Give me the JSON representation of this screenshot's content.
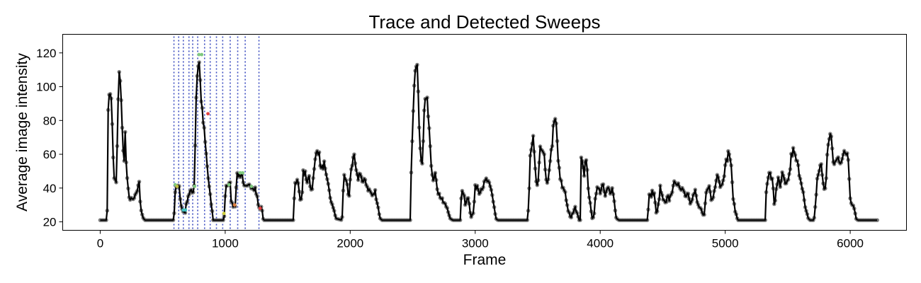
{
  "chart_data": {
    "type": "line",
    "title": "Trace and Detected Sweeps",
    "xlabel": "Frame",
    "ylabel": "Average image intensity",
    "xlim": [
      -300,
      6450
    ],
    "ylim": [
      15,
      131
    ],
    "xticks": [
      0,
      1000,
      2000,
      3000,
      4000,
      5000,
      6000
    ],
    "yticks": [
      20,
      40,
      60,
      80,
      100,
      120
    ],
    "grid": false,
    "legend": "none",
    "colors": {
      "trace": "#000000",
      "points": "#808080",
      "sweep_lines": "#3b4cc0"
    },
    "trace_keypoints": [
      [
        0,
        21
      ],
      [
        55,
        21
      ],
      [
        65,
        90
      ],
      [
        75,
        100
      ],
      [
        85,
        96
      ],
      [
        95,
        80
      ],
      [
        110,
        45
      ],
      [
        130,
        43
      ],
      [
        145,
        95
      ],
      [
        155,
        111
      ],
      [
        165,
        100
      ],
      [
        180,
        65
      ],
      [
        190,
        55
      ],
      [
        200,
        72
      ],
      [
        212,
        47
      ],
      [
        225,
        38
      ],
      [
        240,
        33
      ],
      [
        265,
        33
      ],
      [
        290,
        36
      ],
      [
        310,
        45
      ],
      [
        322,
        30
      ],
      [
        332,
        26
      ],
      [
        345,
        22
      ],
      [
        360,
        21
      ],
      [
        590,
        21
      ],
      [
        598,
        38
      ],
      [
        612,
        40
      ],
      [
        630,
        41
      ],
      [
        648,
        30
      ],
      [
        660,
        26
      ],
      [
        680,
        26
      ],
      [
        700,
        35
      ],
      [
        720,
        38
      ],
      [
        740,
        37
      ],
      [
        755,
        43
      ],
      [
        765,
        90
      ],
      [
        778,
        110
      ],
      [
        790,
        117
      ],
      [
        800,
        103
      ],
      [
        815,
        85
      ],
      [
        830,
        75
      ],
      [
        850,
        58
      ],
      [
        865,
        45
      ],
      [
        880,
        35
      ],
      [
        893,
        28
      ],
      [
        903,
        21
      ],
      [
        990,
        21
      ],
      [
        1000,
        35
      ],
      [
        1008,
        42
      ],
      [
        1040,
        42
      ],
      [
        1050,
        31
      ],
      [
        1060,
        30
      ],
      [
        1080,
        30
      ],
      [
        1090,
        45
      ],
      [
        1100,
        48
      ],
      [
        1140,
        48
      ],
      [
        1150,
        40
      ],
      [
        1180,
        40
      ],
      [
        1200,
        42
      ],
      [
        1240,
        40
      ],
      [
        1255,
        35
      ],
      [
        1268,
        28
      ],
      [
        1295,
        28
      ],
      [
        1305,
        21
      ],
      [
        1545,
        21
      ],
      [
        1555,
        40
      ],
      [
        1570,
        45
      ],
      [
        1585,
        45
      ],
      [
        1595,
        33
      ],
      [
        1610,
        32
      ],
      [
        1625,
        50
      ],
      [
        1640,
        48
      ],
      [
        1655,
        42
      ],
      [
        1670,
        50
      ],
      [
        1685,
        38
      ],
      [
        1700,
        42
      ],
      [
        1720,
        56
      ],
      [
        1735,
        65
      ],
      [
        1750,
        60
      ],
      [
        1770,
        50
      ],
      [
        1790,
        55
      ],
      [
        1810,
        45
      ],
      [
        1830,
        40
      ],
      [
        1850,
        30
      ],
      [
        1870,
        28
      ],
      [
        1885,
        22
      ],
      [
        1935,
        21
      ],
      [
        1950,
        48
      ],
      [
        1965,
        45
      ],
      [
        1980,
        40
      ],
      [
        1990,
        32
      ],
      [
        2005,
        52
      ],
      [
        2020,
        55
      ],
      [
        2035,
        58
      ],
      [
        2045,
        50
      ],
      [
        2060,
        45
      ],
      [
        2080,
        50
      ],
      [
        2100,
        42
      ],
      [
        2120,
        45
      ],
      [
        2140,
        40
      ],
      [
        2160,
        38
      ],
      [
        2180,
        35
      ],
      [
        2200,
        38
      ],
      [
        2220,
        30
      ],
      [
        2240,
        22
      ],
      [
        2255,
        21
      ],
      [
        2480,
        21
      ],
      [
        2490,
        55
      ],
      [
        2505,
        90
      ],
      [
        2520,
        110
      ],
      [
        2532,
        118
      ],
      [
        2542,
        100
      ],
      [
        2555,
        65
      ],
      [
        2575,
        50
      ],
      [
        2588,
        80
      ],
      [
        2600,
        92
      ],
      [
        2620,
        90
      ],
      [
        2635,
        75
      ],
      [
        2650,
        52
      ],
      [
        2668,
        45
      ],
      [
        2685,
        48
      ],
      [
        2700,
        38
      ],
      [
        2720,
        35
      ],
      [
        2740,
        32
      ],
      [
        2760,
        30
      ],
      [
        2780,
        28
      ],
      [
        2800,
        22
      ],
      [
        2820,
        21
      ],
      [
        2880,
        21
      ],
      [
        2890,
        36
      ],
      [
        2905,
        38
      ],
      [
        2920,
        30
      ],
      [
        2935,
        35
      ],
      [
        2950,
        33
      ],
      [
        2965,
        23
      ],
      [
        2985,
        25
      ],
      [
        3000,
        40
      ],
      [
        3015,
        42
      ],
      [
        3030,
        38
      ],
      [
        3050,
        40
      ],
      [
        3070,
        42
      ],
      [
        3090,
        45
      ],
      [
        3110,
        42
      ],
      [
        3130,
        38
      ],
      [
        3150,
        30
      ],
      [
        3165,
        22
      ],
      [
        3180,
        21
      ],
      [
        3420,
        21
      ],
      [
        3430,
        35
      ],
      [
        3440,
        58
      ],
      [
        3455,
        65
      ],
      [
        3465,
        70
      ],
      [
        3475,
        55
      ],
      [
        3490,
        40
      ],
      [
        3505,
        45
      ],
      [
        3520,
        62
      ],
      [
        3535,
        65
      ],
      [
        3550,
        60
      ],
      [
        3565,
        45
      ],
      [
        3580,
        40
      ],
      [
        3595,
        55
      ],
      [
        3610,
        62
      ],
      [
        3625,
        75
      ],
      [
        3640,
        80
      ],
      [
        3650,
        76
      ],
      [
        3665,
        55
      ],
      [
        3680,
        45
      ],
      [
        3700,
        40
      ],
      [
        3720,
        38
      ],
      [
        3735,
        30
      ],
      [
        3750,
        25
      ],
      [
        3765,
        22
      ],
      [
        3780,
        25
      ],
      [
        3800,
        28
      ],
      [
        3815,
        26
      ],
      [
        3830,
        21
      ],
      [
        3840,
        21
      ],
      [
        3845,
        55
      ],
      [
        3860,
        60
      ],
      [
        3870,
        45
      ],
      [
        3880,
        58
      ],
      [
        3890,
        55
      ],
      [
        3905,
        40
      ],
      [
        3920,
        30
      ],
      [
        3935,
        22
      ],
      [
        3950,
        24
      ],
      [
        3965,
        38
      ],
      [
        3980,
        40
      ],
      [
        4000,
        38
      ],
      [
        4020,
        42
      ],
      [
        4040,
        35
      ],
      [
        4060,
        40
      ],
      [
        4080,
        38
      ],
      [
        4100,
        40
      ],
      [
        4115,
        30
      ],
      [
        4130,
        22
      ],
      [
        4150,
        21
      ],
      [
        4380,
        21
      ],
      [
        4390,
        36
      ],
      [
        4405,
        35
      ],
      [
        4420,
        38
      ],
      [
        4435,
        36
      ],
      [
        4450,
        23
      ],
      [
        4465,
        30
      ],
      [
        4480,
        40
      ],
      [
        4495,
        35
      ],
      [
        4510,
        32
      ],
      [
        4525,
        30
      ],
      [
        4540,
        35
      ],
      [
        4555,
        33
      ],
      [
        4570,
        38
      ],
      [
        4585,
        40
      ],
      [
        4600,
        45
      ],
      [
        4620,
        42
      ],
      [
        4640,
        38
      ],
      [
        4660,
        42
      ],
      [
        4680,
        35
      ],
      [
        4700,
        38
      ],
      [
        4720,
        32
      ],
      [
        4740,
        35
      ],
      [
        4760,
        38
      ],
      [
        4780,
        30
      ],
      [
        4800,
        28
      ],
      [
        4815,
        25
      ],
      [
        4830,
        22
      ],
      [
        4845,
        35
      ],
      [
        4860,
        42
      ],
      [
        4875,
        40
      ],
      [
        4890,
        32
      ],
      [
        4905,
        35
      ],
      [
        4920,
        42
      ],
      [
        4935,
        50
      ],
      [
        4950,
        45
      ],
      [
        4965,
        40
      ],
      [
        4980,
        45
      ],
      [
        5000,
        52
      ],
      [
        5015,
        58
      ],
      [
        5030,
        62
      ],
      [
        5045,
        55
      ],
      [
        5058,
        40
      ],
      [
        5070,
        30
      ],
      [
        5085,
        25
      ],
      [
        5100,
        21
      ],
      [
        5320,
        21
      ],
      [
        5330,
        42
      ],
      [
        5345,
        48
      ],
      [
        5360,
        48
      ],
      [
        5375,
        45
      ],
      [
        5385,
        38
      ],
      [
        5395,
        28
      ],
      [
        5410,
        42
      ],
      [
        5425,
        45
      ],
      [
        5440,
        40
      ],
      [
        5455,
        48
      ],
      [
        5470,
        45
      ],
      [
        5485,
        40
      ],
      [
        5500,
        45
      ],
      [
        5515,
        48
      ],
      [
        5530,
        60
      ],
      [
        5545,
        62
      ],
      [
        5560,
        58
      ],
      [
        5575,
        55
      ],
      [
        5590,
        50
      ],
      [
        5605,
        45
      ],
      [
        5620,
        40
      ],
      [
        5635,
        30
      ],
      [
        5650,
        25
      ],
      [
        5665,
        22
      ],
      [
        5680,
        21
      ],
      [
        5710,
        21
      ],
      [
        5720,
        28
      ],
      [
        5735,
        45
      ],
      [
        5750,
        50
      ],
      [
        5765,
        55
      ],
      [
        5780,
        45
      ],
      [
        5795,
        38
      ],
      [
        5808,
        45
      ],
      [
        5820,
        65
      ],
      [
        5835,
        72
      ],
      [
        5850,
        70
      ],
      [
        5860,
        55
      ],
      [
        5875,
        55
      ],
      [
        5890,
        56
      ],
      [
        5905,
        58
      ],
      [
        5920,
        56
      ],
      [
        5935,
        58
      ],
      [
        5950,
        60
      ],
      [
        5965,
        60
      ],
      [
        5980,
        62
      ],
      [
        5990,
        50
      ],
      [
        6000,
        35
      ],
      [
        6015,
        30
      ],
      [
        6030,
        30
      ],
      [
        6045,
        22
      ],
      [
        6060,
        21
      ],
      [
        6220,
        21
      ]
    ],
    "sweep_lines_x": [
      590,
      628,
      665,
      710,
      740,
      780,
      835,
      880,
      930,
      980,
      1040,
      1100,
      1160,
      1270
    ],
    "sweep_markers": [
      {
        "x": 600,
        "y": 42,
        "color": "#7fc97f"
      },
      {
        "x": 615,
        "y": 41,
        "color": "#bfbf3f"
      },
      {
        "x": 665,
        "y": 27,
        "color": "#40c0c0"
      },
      {
        "x": 682,
        "y": 27,
        "color": "#40c0c0"
      },
      {
        "x": 755,
        "y": 41,
        "color": "#7fc97f"
      },
      {
        "x": 790,
        "y": 119,
        "color": "#7fc97f"
      },
      {
        "x": 812,
        "y": 119,
        "color": "#7fc97f"
      },
      {
        "x": 862,
        "y": 84,
        "color": "#e04040"
      },
      {
        "x": 990,
        "y": 25,
        "color": "#d0d040"
      },
      {
        "x": 1030,
        "y": 42,
        "color": "#7fc97f"
      },
      {
        "x": 1075,
        "y": 30,
        "color": "#e08040"
      },
      {
        "x": 1120,
        "y": 49,
        "color": "#7fc97f"
      },
      {
        "x": 1140,
        "y": 49,
        "color": "#7fc97f"
      },
      {
        "x": 1210,
        "y": 41,
        "color": "#7fc97f"
      },
      {
        "x": 1280,
        "y": 28,
        "color": "#e04040"
      }
    ]
  }
}
